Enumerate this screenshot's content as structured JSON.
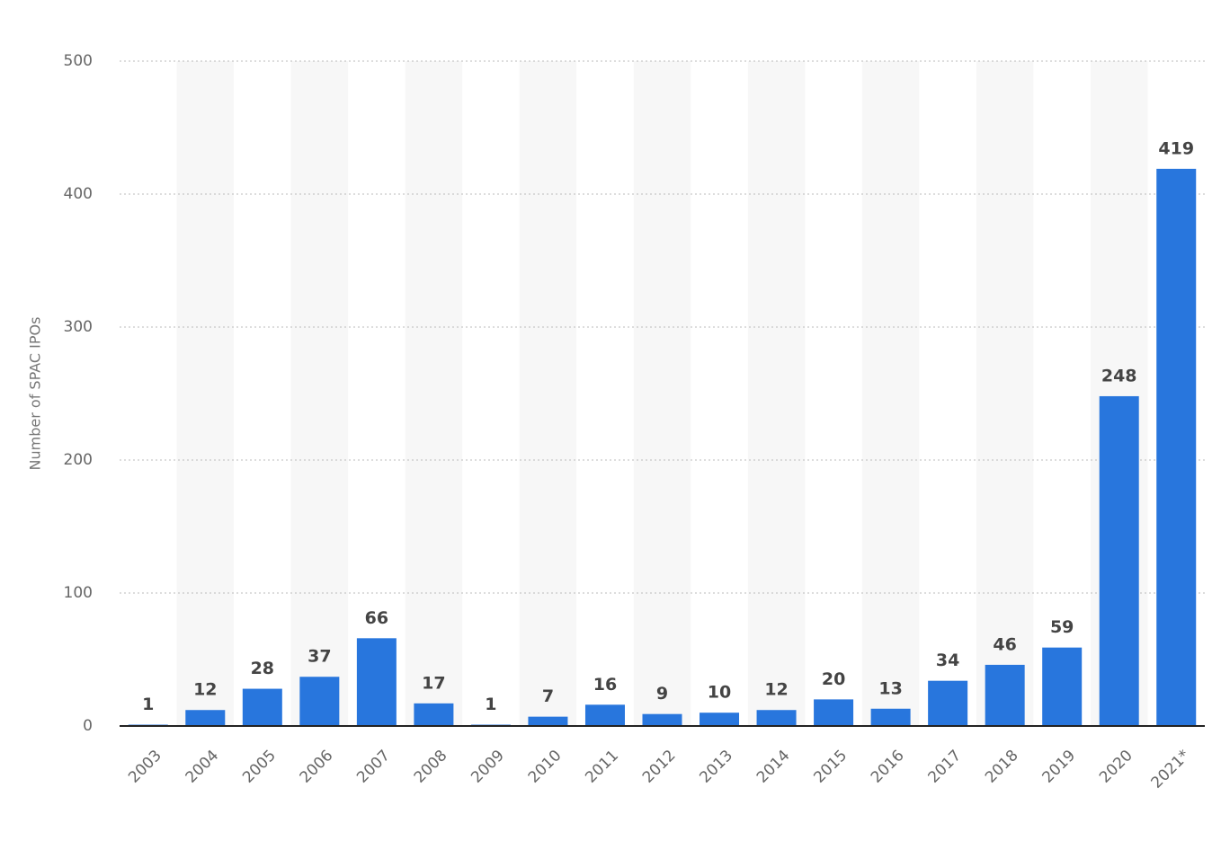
{
  "chart_data": {
    "type": "bar",
    "y_label": "Number of SPAC IPOs",
    "categories": [
      "2003",
      "2004",
      "2005",
      "2006",
      "2007",
      "2008",
      "2009",
      "2010",
      "2011",
      "2012",
      "2013",
      "2014",
      "2015",
      "2016",
      "2017",
      "2018",
      "2019",
      "2020",
      "2021*"
    ],
    "values": [
      1,
      12,
      28,
      37,
      66,
      17,
      1,
      7,
      16,
      9,
      10,
      12,
      20,
      13,
      34,
      46,
      59,
      248,
      419
    ],
    "color": "#2876dd",
    "ylim": [
      0,
      500
    ],
    "yticks": [
      0,
      100,
      200,
      300,
      400,
      500
    ],
    "grid": true
  }
}
